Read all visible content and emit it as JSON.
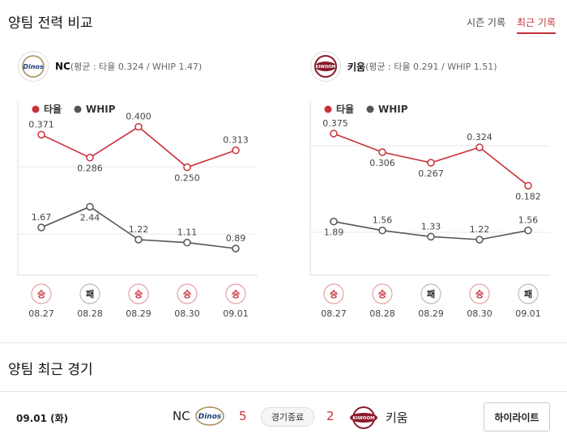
{
  "header": {
    "title": "양팀 전력 비교",
    "tabs": [
      {
        "label": "시즌 기록",
        "active": false
      },
      {
        "label": "최근 기록",
        "active": true
      }
    ]
  },
  "teams": [
    {
      "name": "NC",
      "summary": "(평균 : 타율 0.324 / WHIP 1.47)",
      "logo_text": "Dinos"
    },
    {
      "name": "키움",
      "summary": "(평균 : 타율 0.291 / WHIP 1.51)",
      "logo_text": "KIWOOM"
    }
  ],
  "chart_data": [
    {
      "type": "line",
      "team": "NC",
      "categories": [
        "08.27",
        "08.28",
        "08.29",
        "08.30",
        "09.01"
      ],
      "results": [
        "승",
        "패",
        "승",
        "승",
        "승"
      ],
      "series": [
        {
          "name": "타율",
          "values": [
            0.371,
            0.286,
            0.4,
            0.25,
            0.313
          ],
          "labels": [
            "0.371",
            "0.286",
            "0.400",
            "0.250",
            "0.313"
          ],
          "color": "#c8313a"
        },
        {
          "name": "WHIP",
          "values": [
            1.67,
            2.44,
            1.22,
            1.11,
            0.89
          ],
          "labels": [
            "1.67",
            "2.44",
            "1.22",
            "1.11",
            "0.89"
          ],
          "color": "#555555"
        }
      ]
    },
    {
      "type": "line",
      "team": "키움",
      "categories": [
        "08.27",
        "08.28",
        "08.29",
        "08.30",
        "09.01"
      ],
      "results": [
        "승",
        "승",
        "패",
        "승",
        "패"
      ],
      "series": [
        {
          "name": "타율",
          "values": [
            0.375,
            0.306,
            0.267,
            0.324,
            0.182
          ],
          "labels": [
            "0.375",
            "0.306",
            "0.267",
            "0.324",
            "0.182"
          ],
          "color": "#c8313a"
        },
        {
          "name": "WHIP",
          "values": [
            1.89,
            1.56,
            1.33,
            1.22,
            1.56
          ],
          "labels": [
            "1.89",
            "1.56",
            "1.33",
            "1.22",
            "1.56"
          ],
          "color": "#555555"
        }
      ]
    }
  ],
  "recent": {
    "title": "양팀 최근 경기",
    "date": "09.01 (화)",
    "home": "NC",
    "home_score": "5",
    "status": "경기종료",
    "away_score": "2",
    "away": "키움",
    "highlight_label": "하이라이트"
  },
  "colors": {
    "accent": "#c8313a",
    "whip": "#555555"
  }
}
